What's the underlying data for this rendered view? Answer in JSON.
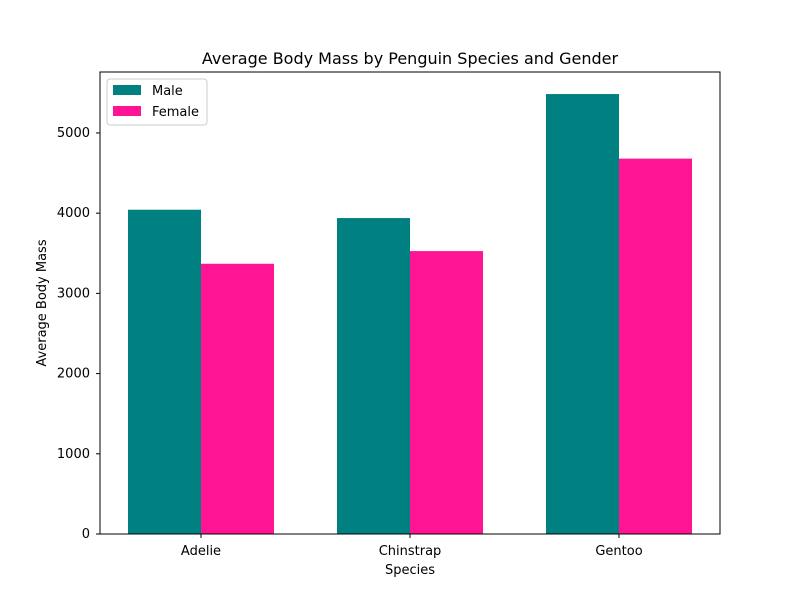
{
  "chart_data": {
    "type": "bar",
    "title": "Average Body Mass by Penguin Species and Gender",
    "xlabel": "Species",
    "ylabel": "Average Body Mass",
    "categories": [
      "Adelie",
      "Chinstrap",
      "Gentoo"
    ],
    "series": [
      {
        "name": "Male",
        "color": "#008080",
        "values": [
          4043,
          3939,
          5485
        ]
      },
      {
        "name": "Female",
        "color": "#FF1493",
        "values": [
          3369,
          3527,
          4680
        ]
      }
    ],
    "ylim": [
      0,
      5760
    ],
    "yticks": [
      0,
      1000,
      2000,
      3000,
      4000,
      5000
    ],
    "legend_position": "top-left",
    "grid": false
  }
}
